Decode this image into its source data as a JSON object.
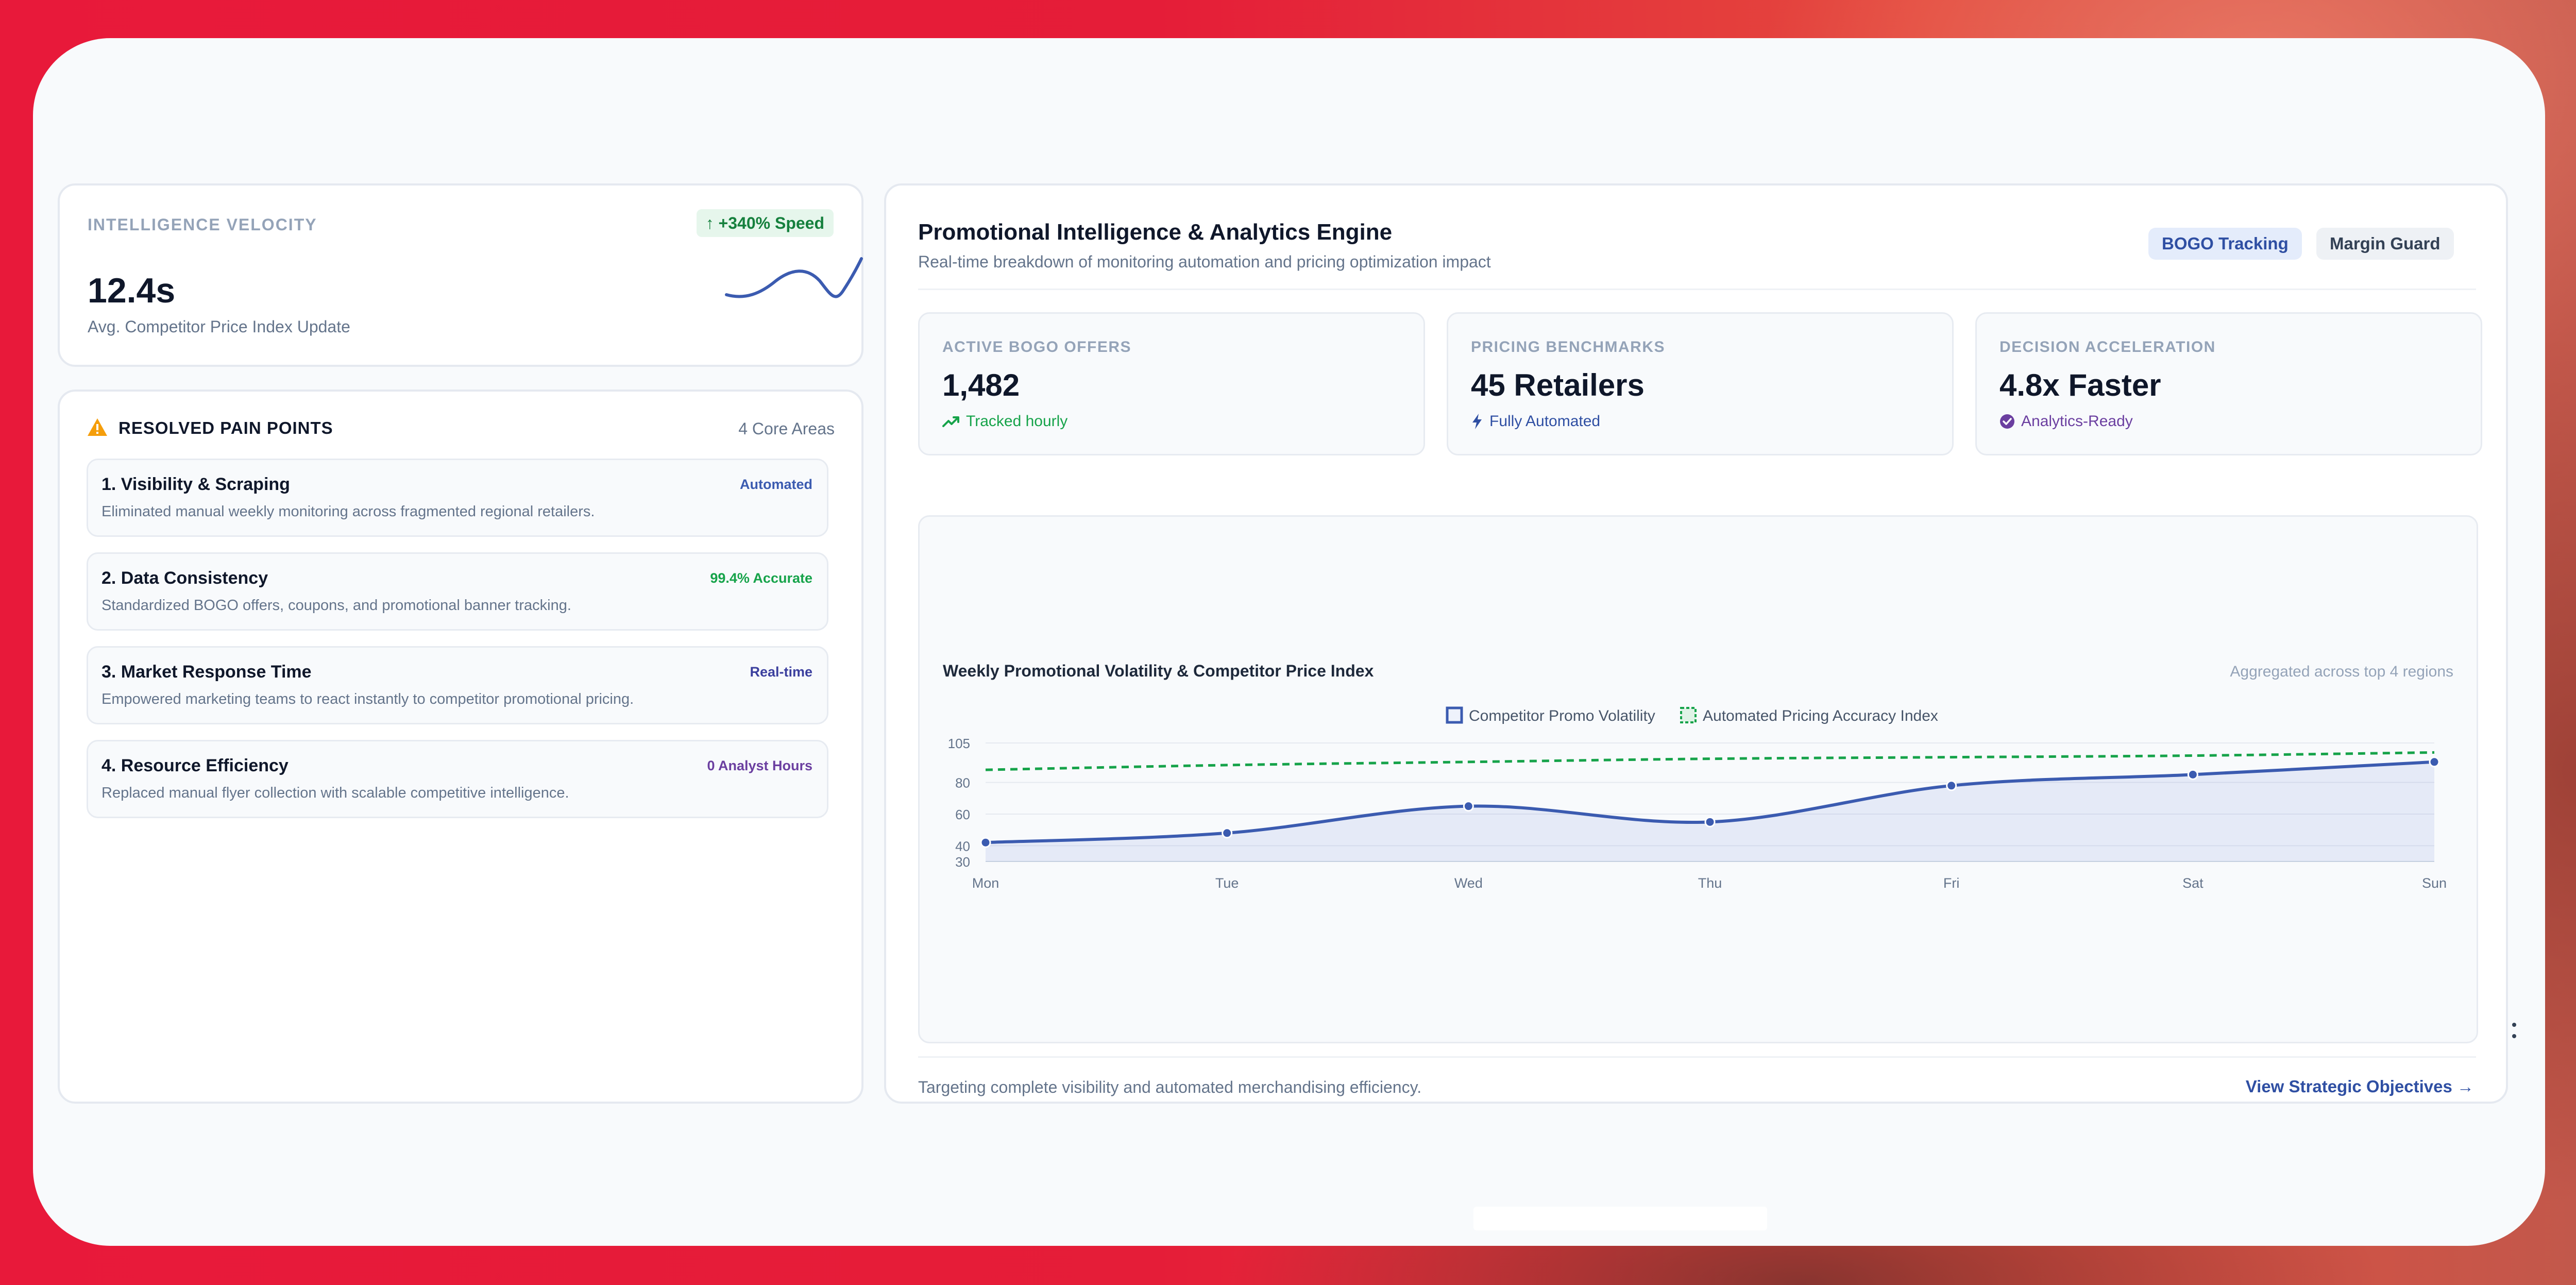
{
  "velocity": {
    "label": "INTELLIGENCE VELOCITY",
    "badge": "+340% Speed",
    "value": "12.4s",
    "caption": "Avg. Competitor Price Index Update"
  },
  "pain_points": {
    "title": "RESOLVED PAIN POINTS",
    "count": "4 Core Areas",
    "items": [
      {
        "title": "1. Visibility & Scraping",
        "desc": "Eliminated manual weekly monitoring across fragmented regional retailers.",
        "badge": "Automated",
        "badge_color": "#3b5bb0"
      },
      {
        "title": "2. Data Consistency",
        "desc": "Standardized BOGO offers, coupons, and promotional banner tracking.",
        "badge": "99.4% Accurate",
        "badge_color": "#16a34a"
      },
      {
        "title": "3. Market Response Time",
        "desc": "Empowered marketing teams to react instantly to competitor promotional pricing.",
        "badge": "Real-time",
        "badge_color": "#3b3f9e"
      },
      {
        "title": "4. Resource Efficiency",
        "desc": "Replaced manual flyer collection with scalable competitive intelligence.",
        "badge": "0 Analyst Hours",
        "badge_color": "#6b3fa0"
      }
    ]
  },
  "engine": {
    "title": "Promotional Intelligence & Analytics Engine",
    "subtitle": "Real-time breakdown of monitoring automation and pricing optimization impact",
    "tags": [
      "BOGO Tracking",
      "Margin Guard"
    ],
    "stats": [
      {
        "label": "ACTIVE BOGO OFFERS",
        "value": "1,482",
        "foot": "Tracked hourly",
        "foot_icon": "trend-up-icon",
        "foot_color": "#16a34a"
      },
      {
        "label": "PRICING BENCHMARKS",
        "value": "45 Retailers",
        "foot": "Fully Automated",
        "foot_icon": "lightning-icon",
        "foot_color": "#2f4fa3"
      },
      {
        "label": "DECISION ACCELERATION",
        "value": "4.8x Faster",
        "foot": "Analytics-Ready",
        "foot_icon": "check-circle-icon",
        "foot_color": "#6b3fa0"
      }
    ],
    "footer_text": "Targeting complete visibility and automated merchandising efficiency.",
    "footer_link": "View Strategic Objectives →"
  },
  "chart_data": {
    "type": "line",
    "title": "Weekly Promotional Volatility & Competitor Price Index",
    "note": "Aggregated across top 4 regions",
    "categories": [
      "Mon",
      "Tue",
      "Wed",
      "Thu",
      "Fri",
      "Sat",
      "Sun"
    ],
    "y_ticks": [
      30,
      40,
      60,
      80,
      105
    ],
    "ylim": [
      30,
      105
    ],
    "legend_position": "top-center",
    "series": [
      {
        "name": "Competitor Promo Volatility",
        "values": [
          42,
          48,
          65,
          55,
          78,
          85,
          93
        ],
        "color": "#3b5bb0",
        "style": "solid-area"
      },
      {
        "name": "Automated Pricing Accuracy Index",
        "values": [
          88,
          91,
          93,
          95,
          96,
          97,
          99
        ],
        "color": "#16a34a",
        "style": "dashed"
      }
    ]
  }
}
